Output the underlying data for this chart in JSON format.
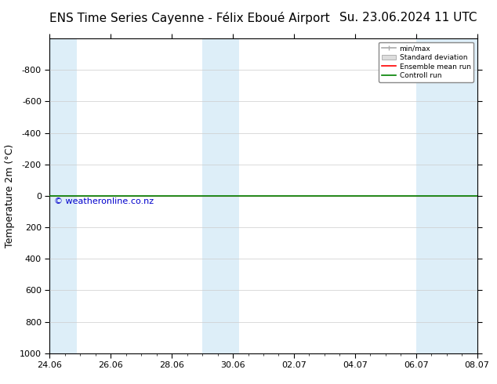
{
  "title_left": "ENS Time Series Cayenne - Félix Eboué Airport",
  "title_right": "Su. 23.06.2024 11 UTC",
  "ylabel": "Temperature 2m (°C)",
  "watermark": "© weatheronline.co.nz",
  "ylim_bottom": 1000,
  "ylim_top": -1000,
  "yticks": [
    -800,
    -600,
    -400,
    -200,
    0,
    200,
    400,
    600,
    800,
    1000
  ],
  "x_start": 0,
  "x_end": 14,
  "xtick_labels": [
    "24.06",
    "26.06",
    "28.06",
    "30.06",
    "02.07",
    "04.07",
    "06.07",
    "08.07"
  ],
  "xtick_positions": [
    0,
    2,
    4,
    6,
    8,
    10,
    12,
    14
  ],
  "blue_bands": [
    [
      0,
      0.9
    ],
    [
      5.0,
      6.2
    ],
    [
      12.0,
      13.0
    ],
    [
      13.0,
      14.0
    ]
  ],
  "legend_entries": [
    "min/max",
    "Standard deviation",
    "Ensemble mean run",
    "Controll run"
  ],
  "bg_color": "#ffffff",
  "band_color": "#ddeef8",
  "grid_color": "#cccccc",
  "title_fontsize": 11,
  "axis_fontsize": 9,
  "tick_fontsize": 8,
  "watermark_color": "#0000cc"
}
